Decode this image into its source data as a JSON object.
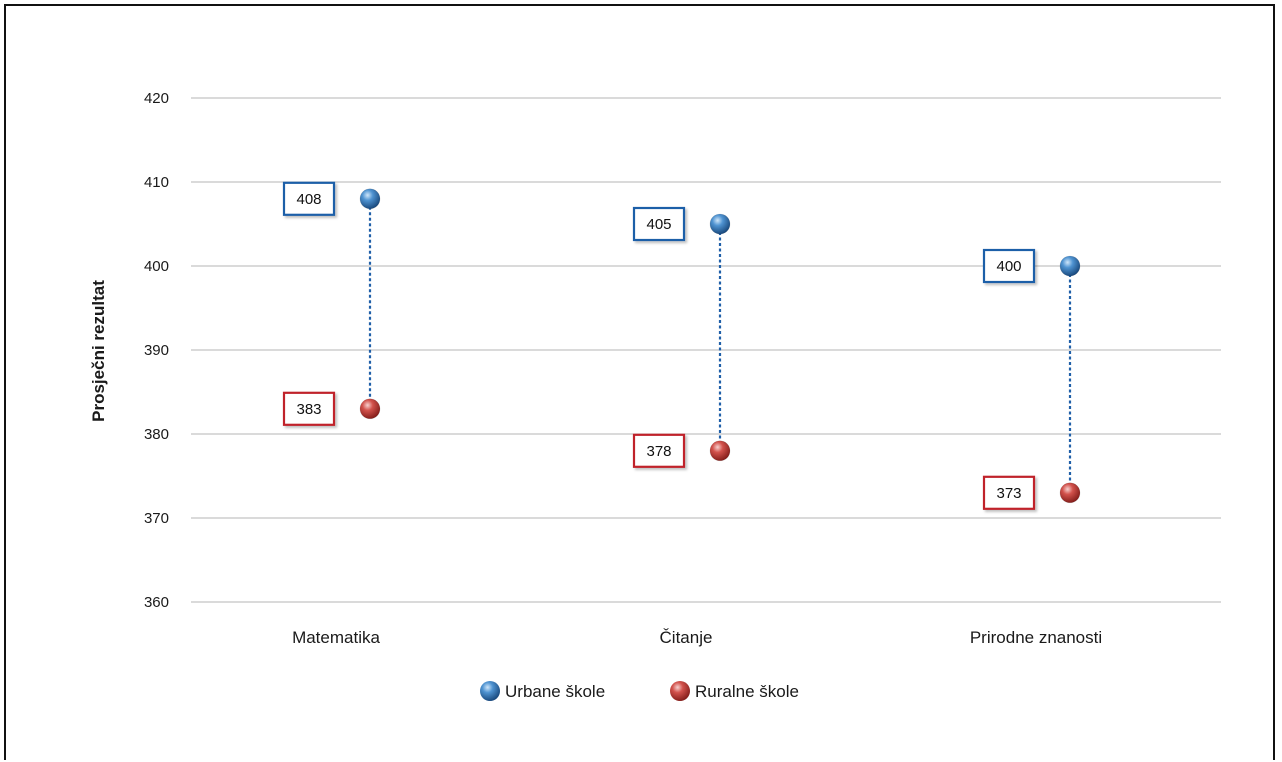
{
  "chart_data": {
    "type": "scatter",
    "title": "",
    "xlabel": "",
    "ylabel": "Prosječni rezultat",
    "ylim": [
      360,
      420
    ],
    "yticks": [
      360,
      370,
      380,
      390,
      400,
      410,
      420
    ],
    "grid": true,
    "legend_position": "bottom",
    "categories": [
      "Matematika",
      "Čitanje",
      "Prirodne znanosti"
    ],
    "series": [
      {
        "name": "Urbane škole",
        "color": "#2e6fb0",
        "label_color": "#1f5fa8",
        "values": [
          408,
          405,
          400
        ]
      },
      {
        "name": "Ruralne škole",
        "color": "#c23a36",
        "label_color": "#c0242b",
        "values": [
          383,
          378,
          373
        ]
      }
    ],
    "connector_color": "#1f5fa8"
  }
}
